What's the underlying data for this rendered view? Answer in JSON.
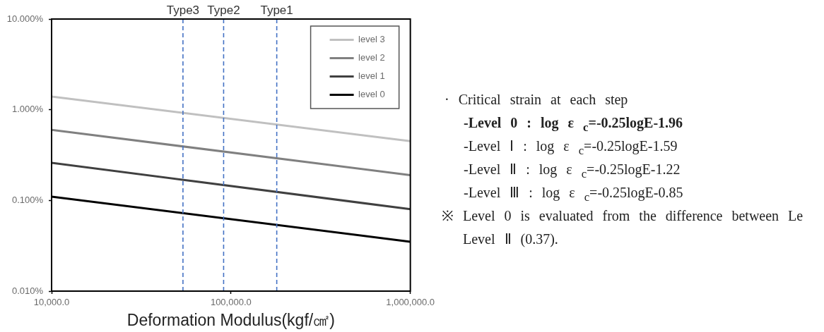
{
  "chart_data": {
    "type": "line",
    "xlabel": "Deformation Modulus(kgf/㎠)",
    "x": [
      10000,
      1000000
    ],
    "series": [
      {
        "name": "level 3",
        "color": "#c0c0c0",
        "values": [
          1.4,
          0.45
        ]
      },
      {
        "name": "level 2",
        "color": "#808080",
        "values": [
          0.6,
          0.19
        ]
      },
      {
        "name": "level 1",
        "color": "#404040",
        "values": [
          0.26,
          0.08
        ]
      },
      {
        "name": "level 0",
        "color": "#000000",
        "values": [
          0.11,
          0.035
        ]
      }
    ],
    "log": "xy",
    "xlim": [
      10000,
      1000000
    ],
    "ylim": [
      0.01,
      10
    ],
    "xticks": [
      {
        "value": 10000,
        "label": "10,000.0"
      },
      {
        "value": 100000,
        "label": "100,000.0"
      },
      {
        "value": 1000000,
        "label": "1,000,000.0"
      }
    ],
    "yticks": [
      {
        "value": 0.01,
        "label": "0.010%"
      },
      {
        "value": 0.1,
        "label": "0.100%"
      },
      {
        "value": 1,
        "label": "1.000%"
      },
      {
        "value": 10,
        "label": "10.000%"
      }
    ],
    "grid": false,
    "legend": "top right",
    "marker": "none",
    "line_style": "solid",
    "ref_lines": [
      {
        "axis": "x",
        "value": 54000,
        "label": "Type3",
        "color": "#4472c4",
        "line_style": "dashed"
      },
      {
        "axis": "x",
        "value": 91000,
        "label": "Type2",
        "color": "#4472c4",
        "line_style": "dashed"
      },
      {
        "axis": "x",
        "value": 180000,
        "label": "Type1",
        "color": "#4472c4",
        "line_style": "dashed"
      }
    ],
    "annotations": [
      "· Critical strain at each step",
      "-Level 0 : log ε $_{c}$=-0.25logE-1.96",
      "-Level Ⅰ : log ε $_{c}$=-0.25logE-1.59",
      "-Level Ⅱ : log ε $_{c}$=-0.25logE-1.22",
      "-Level Ⅲ : log ε $_{c}$=-0.25logE-0.85",
      "※ Level 0 is evaluated from the difference between Le",
      "Level Ⅱ (0.37)."
    ]
  }
}
